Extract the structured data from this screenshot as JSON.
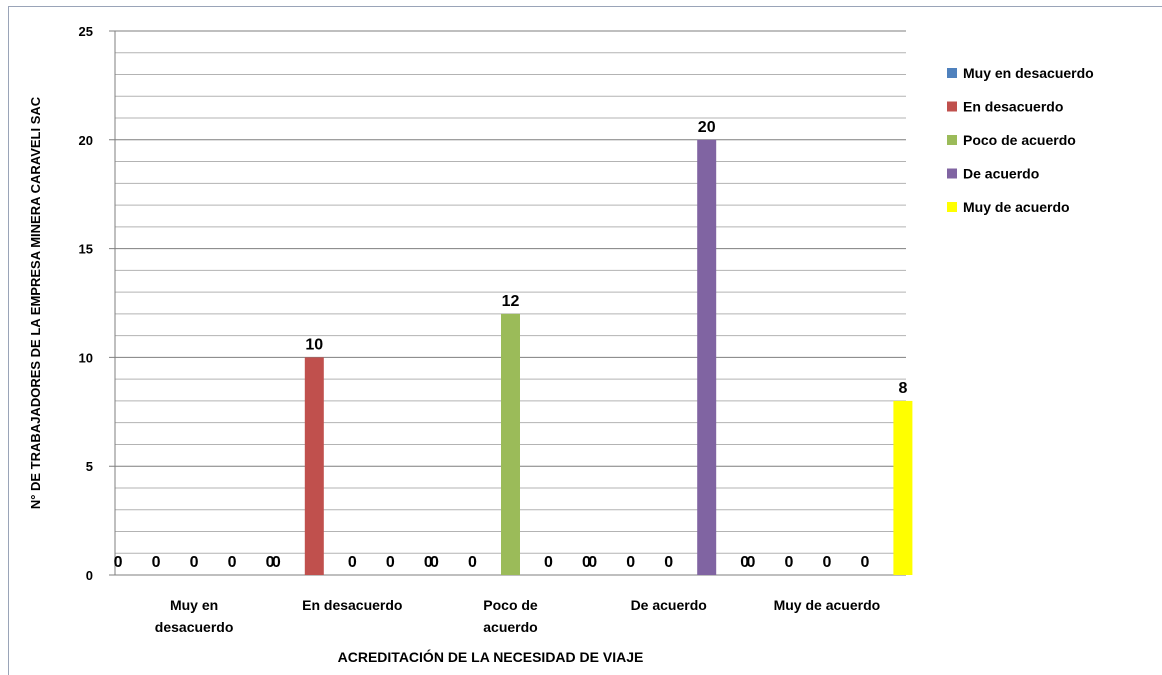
{
  "chart_data": {
    "type": "bar",
    "categories": [
      "Muy en desacuerdo",
      "En  desacuerdo",
      "Poco de acuerdo",
      "De acuerdo",
      "Muy de acuerdo"
    ],
    "category_label_lines": [
      [
        "Muy en",
        "desacuerdo"
      ],
      [
        "En  desacuerdo"
      ],
      [
        "Poco de",
        "acuerdo"
      ],
      [
        "De acuerdo"
      ],
      [
        "Muy de acuerdo"
      ]
    ],
    "series": [
      {
        "name": "Muy en desacuerdo",
        "color": "#4f81bd",
        "values": [
          0,
          0,
          0,
          0,
          0
        ]
      },
      {
        "name": "En  desacuerdo",
        "color": "#c0504d",
        "values": [
          0,
          10,
          0,
          0,
          0
        ]
      },
      {
        "name": "Poco de acuerdo",
        "color": "#9bbb59",
        "values": [
          0,
          0,
          12,
          0,
          0
        ]
      },
      {
        "name": "De acuerdo",
        "color": "#8064a2",
        "values": [
          0,
          0,
          0,
          20,
          0
        ]
      },
      {
        "name": "Muy de acuerdo",
        "color": "#ffff00",
        "values": [
          0,
          0,
          0,
          0,
          8
        ]
      }
    ],
    "xlabel": "ACREDITACIÓN  DE LA NECESIDAD DE VIAJE",
    "ylabel": "N° DE TRABAJADORES DE LA EMPRESA MINERA CARAVELI SAC",
    "ylim": [
      0,
      25
    ],
    "yticks": [
      0,
      5,
      10,
      15,
      20,
      25
    ],
    "minor_gridline_step": 1,
    "grid": true,
    "data_labels": true,
    "legend_position": "right"
  }
}
